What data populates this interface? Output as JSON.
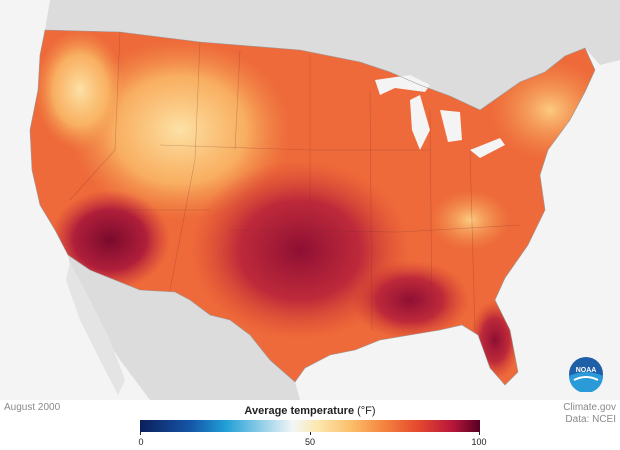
{
  "map": {
    "title": "Average temperature",
    "unit": "(°F)",
    "date": "August 2000",
    "credit_line1": "Climate.gov",
    "credit_line2": "Data: NCEI",
    "legend": {
      "min": "0",
      "mid": "50",
      "max": "100",
      "min_value": 0,
      "mid_value": 50,
      "max_value": 100
    },
    "colors": {
      "background": "#f4f4f4",
      "land_other": "#dcdcdc",
      "cool": "#fbbf6a",
      "warm": "#ee6a3a",
      "hot": "#c82a3a",
      "hottest": "#7a0a2c"
    },
    "logo_text": "NOAA"
  }
}
